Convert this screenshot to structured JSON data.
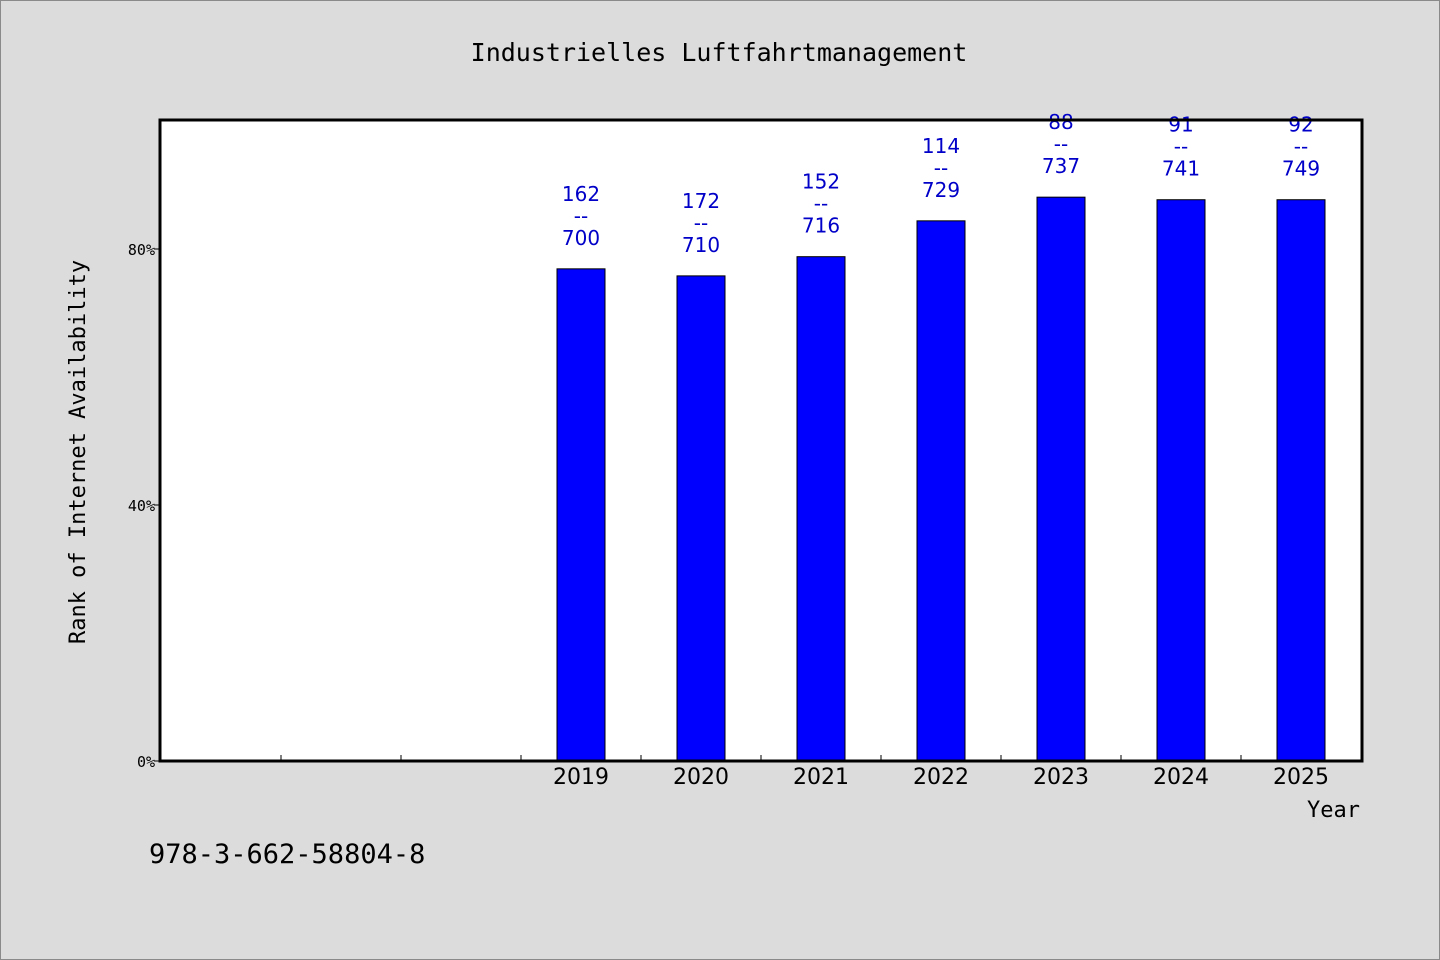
{
  "chart_data": {
    "type": "bar",
    "title": "Industrielles Luftfahrtmanagement",
    "xlabel": "Year",
    "ylabel": "Rank of Internet Availability",
    "categories": [
      "",
      "",
      "",
      "2019",
      "2020",
      "2021",
      "2022",
      "2023",
      "2024",
      "2025"
    ],
    "values": [
      null,
      null,
      null,
      76.9,
      75.8,
      78.8,
      84.4,
      88.1,
      87.7,
      87.7
    ],
    "bar_labels": [
      null,
      null,
      null,
      [
        "162",
        "--",
        "700"
      ],
      [
        "172",
        "--",
        "710"
      ],
      [
        "152",
        "--",
        "716"
      ],
      [
        "114",
        "--",
        "729"
      ],
      [
        "88",
        "--",
        "737"
      ],
      [
        "91",
        "--",
        "741"
      ],
      [
        "92",
        "--",
        "749"
      ]
    ],
    "yticks": [
      0,
      40,
      80
    ],
    "ytick_labels": [
      "0%",
      "40%",
      "80%"
    ],
    "ylim": [
      0,
      100
    ],
    "bar_color": "#0000ff",
    "label_color": "#0000c8",
    "grid": false
  },
  "footer": {
    "isbn": "978-3-662-58804-8"
  }
}
